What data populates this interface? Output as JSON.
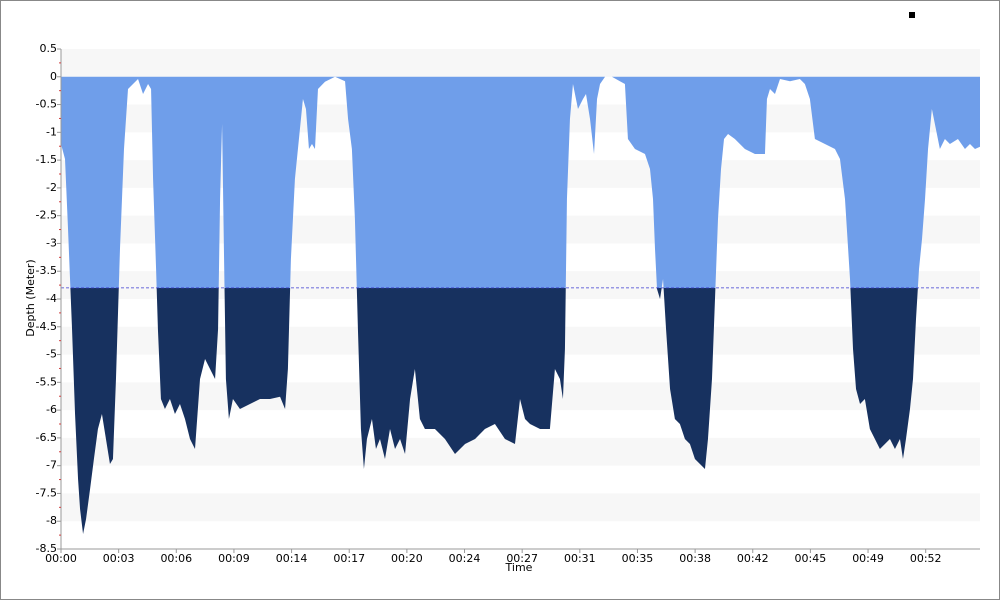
{
  "chart_data": {
    "type": "area",
    "x_label": "Time",
    "y_label": "Depth (Meter)",
    "xlim": [
      0,
      55
    ],
    "ylim": [
      -8.5,
      0.5
    ],
    "xticks": [
      {
        "value": 0,
        "label": "00:00"
      },
      {
        "value": 3.45,
        "label": "00:03"
      },
      {
        "value": 6.9,
        "label": "00:06"
      },
      {
        "value": 10.35,
        "label": "00:09"
      },
      {
        "value": 13.8,
        "label": "00:14"
      },
      {
        "value": 17.25,
        "label": "00:17"
      },
      {
        "value": 20.7,
        "label": "00:20"
      },
      {
        "value": 24.15,
        "label": "00:24"
      },
      {
        "value": 27.6,
        "label": "00:27"
      },
      {
        "value": 31.05,
        "label": "00:31"
      },
      {
        "value": 34.5,
        "label": "00:35"
      },
      {
        "value": 37.95,
        "label": "00:38"
      },
      {
        "value": 41.4,
        "label": "00:42"
      },
      {
        "value": 44.85,
        "label": "00:45"
      },
      {
        "value": 48.3,
        "label": "00:49"
      },
      {
        "value": 51.75,
        "label": "00:52"
      }
    ],
    "yticks": [
      0.5,
      0,
      -0.5,
      -1,
      -1.5,
      -2,
      -2.5,
      -3,
      -3.5,
      -4,
      -4.5,
      -5,
      -5.5,
      -6,
      -6.5,
      -7,
      -7.5,
      -8,
      -8.5
    ],
    "threshold": -3.8,
    "threshold_color": "#3a3ad0",
    "color_above": "#6f9eea",
    "color_below": "#17315f",
    "band_color": "#f7f7f7",
    "series": [
      {
        "x": [
          0,
          0.24,
          0.42,
          0.66,
          0.84,
          1.02,
          1.14,
          1.32,
          1.5,
          1.74,
          1.97,
          2.21,
          2.45,
          2.69,
          2.93,
          3.11,
          3.29,
          3.53,
          3.77,
          4.01,
          4.31,
          4.61,
          4.91,
          5.21,
          5.39,
          5.51,
          5.69,
          5.8,
          5.98,
          6.22,
          6.52,
          6.82,
          7.12,
          7.42,
          7.72,
          8.02,
          8.32,
          8.62,
          8.92,
          9.22,
          9.4,
          9.52,
          9.64,
          9.75,
          9.87,
          10.05,
          10.29,
          10.71,
          11.31,
          11.91,
          12.51,
          13.11,
          13.41,
          13.58,
          13.76,
          14.0,
          14.3,
          14.48,
          14.66,
          14.84,
          15.02,
          15.2,
          15.38,
          15.8,
          16.4,
          17.0,
          17.18,
          17.41,
          17.59,
          17.77,
          17.95,
          18.13,
          18.31,
          18.61,
          18.85,
          19.09,
          19.39,
          19.69,
          19.99,
          20.29,
          20.59,
          20.89,
          21.18,
          21.48,
          21.78,
          22.38,
          22.98,
          23.58,
          24.18,
          24.78,
          25.37,
          25.97,
          26.57,
          27.17,
          27.47,
          27.77,
          28.07,
          28.67,
          29.26,
          29.56,
          29.86,
          30.04,
          30.16,
          30.28,
          30.46,
          30.64,
          30.94,
          31.24,
          31.42,
          31.66,
          31.9,
          32.08,
          32.26,
          32.56,
          32.97,
          33.45,
          33.75,
          33.93,
          34.35,
          34.95,
          35.25,
          35.43,
          35.55,
          35.67,
          35.85,
          36.03,
          36.21,
          36.45,
          36.74,
          37.04,
          37.34,
          37.64,
          37.94,
          38.24,
          38.54,
          38.72,
          38.96,
          39.14,
          39.32,
          39.5,
          39.68,
          39.92,
          40.33,
          40.93,
          41.53,
          42.13,
          42.25,
          42.43,
          42.73,
          43.03,
          43.63,
          44.22,
          44.52,
          44.82,
          45.12,
          45.72,
          46.32,
          46.62,
          46.92,
          47.22,
          47.4,
          47.58,
          47.82,
          48.11,
          48.41,
          48.71,
          49.01,
          49.31,
          49.61,
          49.91,
          50.21,
          50.39,
          50.57,
          50.81,
          50.99,
          51.17,
          51.35,
          51.53,
          51.71,
          51.89,
          52.12,
          52.36,
          52.6,
          52.9,
          53.2,
          53.68,
          54.1,
          54.4,
          54.7,
          55.0
        ],
        "values": [
          -1.21,
          -1.48,
          -2.74,
          -4.54,
          -6.07,
          -7.24,
          -7.78,
          -8.23,
          -7.96,
          -7.42,
          -6.88,
          -6.34,
          -6.07,
          -6.52,
          -6.97,
          -6.88,
          -5.44,
          -3.1,
          -1.3,
          -0.22,
          -0.13,
          -0.04,
          -0.31,
          -0.13,
          -0.22,
          -1.84,
          -3.46,
          -4.54,
          -5.8,
          -5.98,
          -5.8,
          -6.07,
          -5.89,
          -6.16,
          -6.52,
          -6.7,
          -5.44,
          -5.08,
          -5.26,
          -5.44,
          -4.54,
          -2.2,
          -0.85,
          -3.1,
          -5.44,
          -6.16,
          -5.8,
          -5.98,
          -5.89,
          -5.8,
          -5.8,
          -5.76,
          -5.98,
          -5.26,
          -3.28,
          -1.84,
          -0.94,
          -0.4,
          -0.58,
          -1.3,
          -1.21,
          -1.3,
          -0.22,
          -0.09,
          0,
          -0.08,
          -0.76,
          -1.3,
          -2.56,
          -4.54,
          -6.34,
          -7.06,
          -6.52,
          -6.16,
          -6.7,
          -6.52,
          -6.88,
          -6.34,
          -6.7,
          -6.52,
          -6.79,
          -5.8,
          -5.26,
          -6.16,
          -6.34,
          -6.34,
          -6.52,
          -6.79,
          -6.61,
          -6.52,
          -6.34,
          -6.25,
          -6.52,
          -6.61,
          -5.8,
          -6.16,
          -6.25,
          -6.34,
          -6.34,
          -5.26,
          -5.44,
          -5.8,
          -4.9,
          -2.2,
          -0.76,
          -0.13,
          -0.58,
          -0.4,
          -0.31,
          -0.76,
          -1.39,
          -0.4,
          -0.13,
          0,
          0,
          -0.08,
          -0.13,
          -1.12,
          -1.3,
          -1.39,
          -1.66,
          -2.2,
          -3.1,
          -3.82,
          -4.0,
          -3.64,
          -4.54,
          -5.62,
          -6.16,
          -6.25,
          -6.52,
          -6.61,
          -6.88,
          -6.97,
          -7.06,
          -6.52,
          -5.44,
          -4.0,
          -2.56,
          -1.66,
          -1.12,
          -1.03,
          -1.12,
          -1.3,
          -1.39,
          -1.39,
          -0.4,
          -0.22,
          -0.31,
          -0.04,
          -0.08,
          -0.04,
          -0.13,
          -0.4,
          -1.12,
          -1.21,
          -1.3,
          -1.48,
          -2.2,
          -3.64,
          -4.9,
          -5.62,
          -5.89,
          -5.8,
          -6.34,
          -6.52,
          -6.7,
          -6.61,
          -6.52,
          -6.7,
          -6.52,
          -6.88,
          -6.52,
          -5.98,
          -5.44,
          -4.36,
          -3.46,
          -2.92,
          -2.2,
          -1.3,
          -0.58,
          -0.94,
          -1.3,
          -1.12,
          -1.21,
          -1.12,
          -1.3,
          -1.21,
          -1.3,
          -1.26
        ]
      }
    ]
  }
}
